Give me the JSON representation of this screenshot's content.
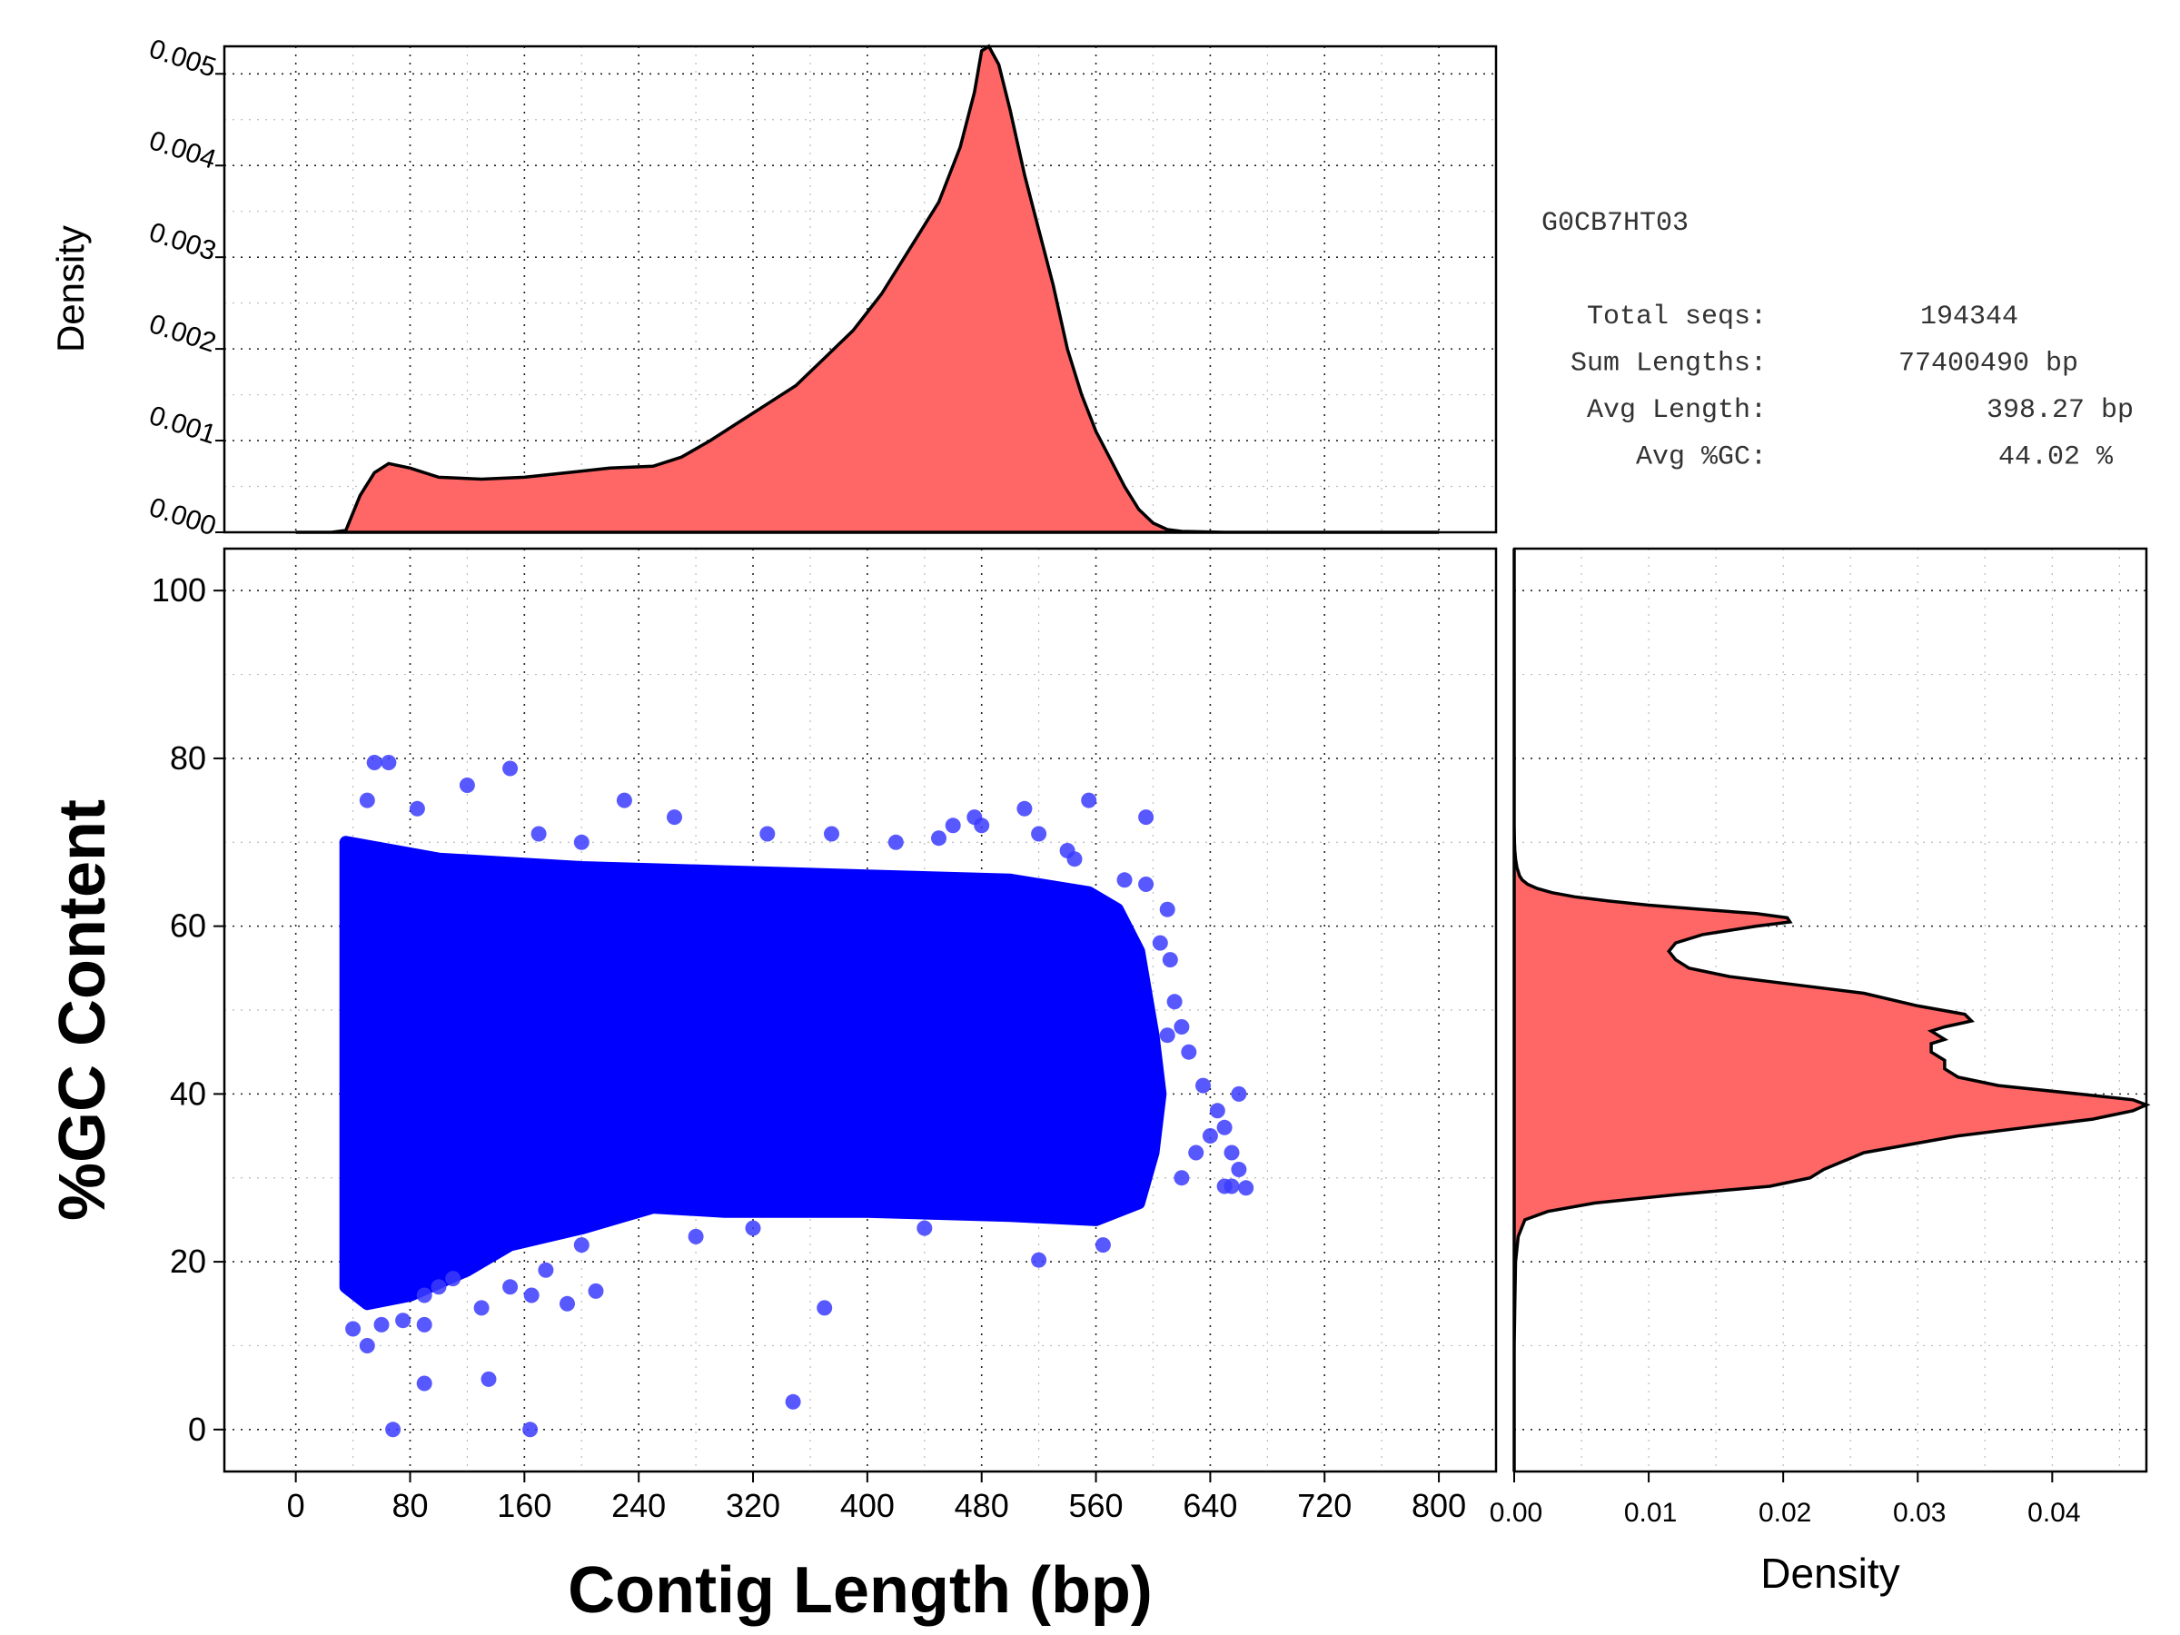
{
  "chart_data": [
    {
      "id": "length_density",
      "type": "area",
      "title": "",
      "xlabel": "",
      "ylabel": "Density",
      "xlim": [
        -50,
        840
      ],
      "ylim": [
        0,
        0.0053
      ],
      "yticks": [
        0.0,
        0.001,
        0.002,
        0.003,
        0.004,
        0.005
      ],
      "ytick_labels": [
        "0.000",
        "0.001",
        "0.002",
        "0.003",
        "0.004",
        "0.005"
      ],
      "fill_color": "#ff6666",
      "line_color": "#000000",
      "x": [
        0,
        25,
        35,
        45,
        55,
        65,
        80,
        100,
        130,
        160,
        190,
        220,
        250,
        270,
        290,
        310,
        330,
        350,
        370,
        390,
        410,
        430,
        450,
        465,
        475,
        480,
        485,
        492,
        500,
        510,
        520,
        530,
        540,
        550,
        560,
        570,
        580,
        590,
        600,
        610,
        620,
        650,
        700,
        800
      ],
      "y": [
        0,
        0,
        2e-05,
        0.0004,
        0.00065,
        0.00075,
        0.0007,
        0.0006,
        0.00058,
        0.0006,
        0.00065,
        0.0007,
        0.00072,
        0.00082,
        0.001,
        0.0012,
        0.0014,
        0.0016,
        0.0019,
        0.0022,
        0.0026,
        0.0031,
        0.0036,
        0.0042,
        0.0048,
        0.00525,
        0.0053,
        0.0051,
        0.0046,
        0.0039,
        0.0033,
        0.0027,
        0.002,
        0.0015,
        0.0011,
        0.0008,
        0.0005,
        0.00025,
        0.0001,
        3e-05,
        1e-05,
        0,
        0,
        0
      ]
    },
    {
      "id": "gc_vs_length",
      "type": "scatter",
      "title": "",
      "xlabel": "Contig Length (bp)",
      "ylabel": "%GC Content",
      "xlim": [
        -50,
        840
      ],
      "ylim": [
        -5,
        105
      ],
      "xticks": [
        0,
        80,
        160,
        240,
        320,
        400,
        480,
        560,
        640,
        720,
        800
      ],
      "xtick_labels": [
        "0",
        "80",
        "160",
        "240",
        "320",
        "400",
        "480",
        "560",
        "640",
        "720",
        "800"
      ],
      "yticks": [
        0,
        20,
        40,
        60,
        80,
        100
      ],
      "ytick_labels": [
        "0",
        "20",
        "40",
        "60",
        "80",
        "100"
      ],
      "point_color": "#0000ff",
      "dense_region": {
        "x_range": [
          35,
          605
        ],
        "y_upper": [
          [
            35,
            70
          ],
          [
            100,
            68
          ],
          [
            200,
            67
          ],
          [
            300,
            66.5
          ],
          [
            400,
            66
          ],
          [
            500,
            65.5
          ],
          [
            555,
            64
          ],
          [
            575,
            62
          ],
          [
            590,
            57
          ],
          [
            600,
            47
          ],
          [
            605,
            40
          ],
          [
            600,
            33
          ],
          [
            590,
            27
          ],
          [
            560,
            25
          ],
          [
            500,
            25.5
          ],
          [
            400,
            26
          ],
          [
            300,
            26
          ],
          [
            250,
            26.5
          ],
          [
            200,
            24
          ],
          [
            150,
            22
          ],
          [
            120,
            19
          ],
          [
            80,
            16
          ],
          [
            50,
            15
          ],
          [
            35,
            17
          ]
        ]
      },
      "outliers": [
        [
          55,
          79.5
        ],
        [
          65,
          79.5
        ],
        [
          150,
          78.8
        ],
        [
          120,
          76.8
        ],
        [
          50,
          75
        ],
        [
          85,
          74
        ],
        [
          230,
          75
        ],
        [
          265,
          73
        ],
        [
          475,
          73
        ],
        [
          510,
          74
        ],
        [
          595,
          73
        ],
        [
          555,
          75
        ],
        [
          375,
          71
        ],
        [
          450,
          70.5
        ],
        [
          460,
          72
        ],
        [
          480,
          72
        ],
        [
          520,
          71
        ],
        [
          330,
          71
        ],
        [
          170,
          71
        ],
        [
          200,
          70
        ],
        [
          420,
          70
        ],
        [
          540,
          69
        ],
        [
          545,
          68
        ],
        [
          580,
          65.5
        ],
        [
          595,
          65
        ],
        [
          610,
          62
        ],
        [
          605,
          58
        ],
        [
          612,
          56
        ],
        [
          615,
          51
        ],
        [
          620,
          48
        ],
        [
          610,
          47
        ],
        [
          625,
          45
        ],
        [
          635,
          41
        ],
        [
          660,
          40
        ],
        [
          645,
          38
        ],
        [
          650,
          36
        ],
        [
          640,
          35
        ],
        [
          655,
          33
        ],
        [
          660,
          31
        ],
        [
          650,
          29
        ],
        [
          665,
          28.8
        ],
        [
          655,
          29
        ],
        [
          630,
          33
        ],
        [
          620,
          30
        ],
        [
          565,
          22
        ],
        [
          520,
          20.2
        ],
        [
          440,
          24
        ],
        [
          320,
          24
        ],
        [
          280,
          23
        ],
        [
          200,
          22
        ],
        [
          175,
          19
        ],
        [
          150,
          17
        ],
        [
          110,
          18
        ],
        [
          100,
          17
        ],
        [
          90,
          16
        ],
        [
          130,
          14.5
        ],
        [
          75,
          13
        ],
        [
          60,
          12.5
        ],
        [
          40,
          12
        ],
        [
          50,
          10
        ],
        [
          90,
          12.5
        ],
        [
          165,
          16
        ],
        [
          210,
          16.5
        ],
        [
          190,
          15
        ],
        [
          370,
          14.5
        ],
        [
          90,
          5.5
        ],
        [
          135,
          6
        ],
        [
          348,
          3.3
        ],
        [
          68,
          0
        ],
        [
          164,
          0
        ]
      ]
    },
    {
      "id": "gc_density",
      "type": "area",
      "title": "",
      "xlabel": "Density",
      "ylabel": "",
      "xlim": [
        0,
        0.047
      ],
      "ylim": [
        -5,
        105
      ],
      "xticks": [
        0.0,
        0.01,
        0.02,
        0.03,
        0.04
      ],
      "xtick_labels": [
        "0.00",
        "0.01",
        "0.02",
        "0.03",
        "0.04"
      ],
      "fill_color": "#ff6666",
      "line_color": "#000000",
      "gc": [
        -5,
        10,
        15,
        20,
        23,
        25,
        26,
        27,
        28,
        29,
        30,
        31,
        33,
        35,
        36,
        37,
        38,
        38.7,
        39.3,
        40,
        41,
        42,
        43,
        44,
        45,
        46,
        46.5,
        47,
        47.5,
        48,
        48.7,
        49.5,
        50.5,
        52,
        53,
        54,
        55,
        56,
        57,
        58,
        59,
        60,
        60.5,
        61,
        61.5,
        62,
        62.5,
        63,
        63.5,
        64,
        64.5,
        65,
        65.5,
        66,
        67,
        68,
        69,
        70,
        72,
        105
      ],
      "density": [
        0,
        0,
        5e-05,
        0.0001,
        0.0003,
        0.0008,
        0.0025,
        0.006,
        0.012,
        0.019,
        0.022,
        0.023,
        0.026,
        0.033,
        0.038,
        0.043,
        0.046,
        0.047,
        0.046,
        0.042,
        0.036,
        0.033,
        0.032,
        0.032,
        0.031,
        0.031,
        0.032,
        0.0315,
        0.031,
        0.032,
        0.034,
        0.0335,
        0.03,
        0.026,
        0.021,
        0.016,
        0.013,
        0.012,
        0.0115,
        0.012,
        0.014,
        0.018,
        0.0205,
        0.0203,
        0.018,
        0.014,
        0.01,
        0.007,
        0.0045,
        0.0028,
        0.0017,
        0.001,
        0.0006,
        0.0004,
        0.0002,
        0.0001,
        5e-05,
        2e-05,
        0,
        0
      ]
    }
  ],
  "annotation": {
    "run_id": "G0CB7HT03",
    "rows": [
      {
        "label": "Total seqs:",
        "value": "194344"
      },
      {
        "label": "Sum Lengths:",
        "value": "77400490 bp"
      },
      {
        "label": "Avg Length:",
        "value": "398.27 bp"
      },
      {
        "label": "Avg %GC:",
        "value": "44.02 %"
      }
    ]
  }
}
